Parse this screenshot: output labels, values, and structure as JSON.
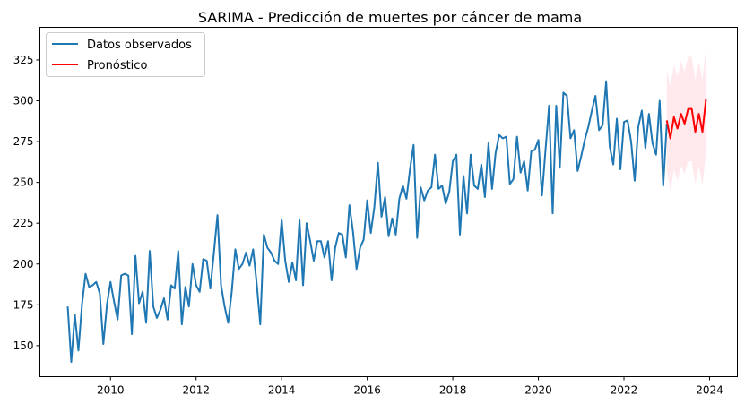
{
  "chart_data": {
    "type": "line",
    "title": "SARIMA - Predicción de muertes por cáncer de mama",
    "xlabel": "",
    "ylabel": "",
    "xlim": [
      2008.35,
      2024.65
    ],
    "ylim": [
      131,
      345
    ],
    "x_ticks": [
      2010,
      2012,
      2014,
      2016,
      2018,
      2020,
      2022,
      2024
    ],
    "y_ticks": [
      150,
      175,
      200,
      225,
      250,
      275,
      300,
      325
    ],
    "grid": false,
    "legend_position": "top-left",
    "series": [
      {
        "name": "Datos observados",
        "color": "#1f77b4",
        "start": "2009-01",
        "frequency": "monthly",
        "values": [
          174,
          140,
          169,
          147,
          175,
          194,
          186,
          187,
          189,
          182,
          151,
          175,
          189,
          177,
          166,
          193,
          194,
          193,
          157,
          205,
          176,
          183,
          164,
          208,
          174,
          167,
          172,
          179,
          166,
          187,
          185,
          208,
          163,
          186,
          174,
          200,
          187,
          183,
          203,
          202,
          185,
          207,
          230,
          187,
          174,
          164,
          183,
          209,
          197,
          200,
          207,
          199,
          209,
          188,
          163,
          218,
          210,
          207,
          202,
          200,
          227,
          202,
          189,
          201,
          190,
          227,
          187,
          225,
          214,
          202,
          214,
          214,
          204,
          214,
          190,
          210,
          219,
          218,
          204,
          236,
          220,
          197,
          210,
          215,
          239,
          219,
          235,
          262,
          229,
          241,
          217,
          228,
          218,
          240,
          248,
          240,
          258,
          273,
          216,
          247,
          239,
          245,
          247,
          267,
          246,
          248,
          237,
          244,
          263,
          267,
          218,
          254,
          231,
          267,
          248,
          246,
          261,
          241,
          274,
          246,
          268,
          279,
          277,
          278,
          249,
          252,
          278,
          256,
          263,
          245,
          269,
          270,
          276,
          242,
          270,
          297,
          231,
          297,
          259,
          305,
          303,
          277,
          282,
          257,
          266,
          276,
          284,
          294,
          303,
          282,
          285,
          312,
          272,
          261,
          289,
          258,
          287,
          288,
          275,
          251,
          284,
          294,
          271,
          292,
          274,
          267,
          300,
          248,
          286
        ]
      },
      {
        "name": "Pronóstico",
        "color": "#ff0000",
        "start": "2023-01",
        "frequency": "monthly",
        "values": [
          288,
          277,
          290,
          283,
          292,
          286,
          295,
          295,
          281,
          292,
          281,
          301
        ],
        "lower": [
          257,
          245,
          258,
          251,
          260,
          255,
          263,
          263,
          249,
          260,
          248,
          268
        ],
        "upper": [
          319,
          309,
          322,
          315,
          324,
          318,
          327,
          327,
          313,
          324,
          313,
          333
        ],
        "band_color": "#ffc0cb"
      }
    ]
  }
}
